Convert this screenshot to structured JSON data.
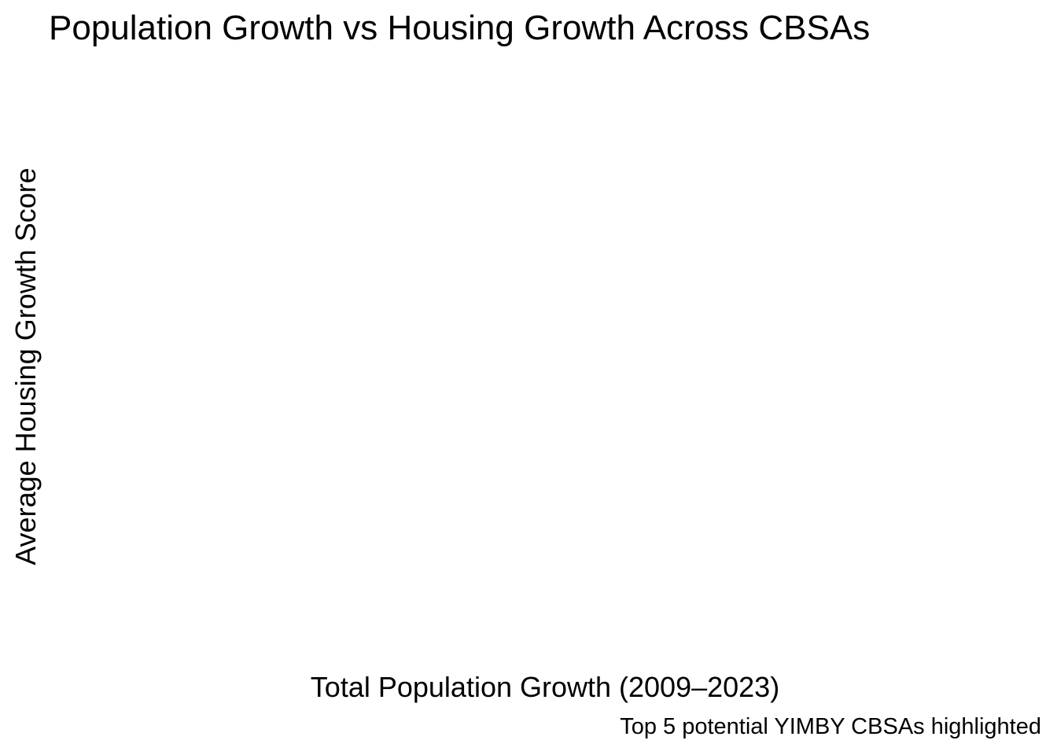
{
  "chart_data": {
    "type": "scatter",
    "title": "Population Growth vs Housing Growth Across CBSAs",
    "xlabel": "Total Population Growth (2009–2023)",
    "ylabel": "Average Housing Growth Score",
    "caption": "Top 5 potential YIMBY CBSAs highlighted",
    "series": [],
    "grid": false,
    "legend": "none"
  }
}
